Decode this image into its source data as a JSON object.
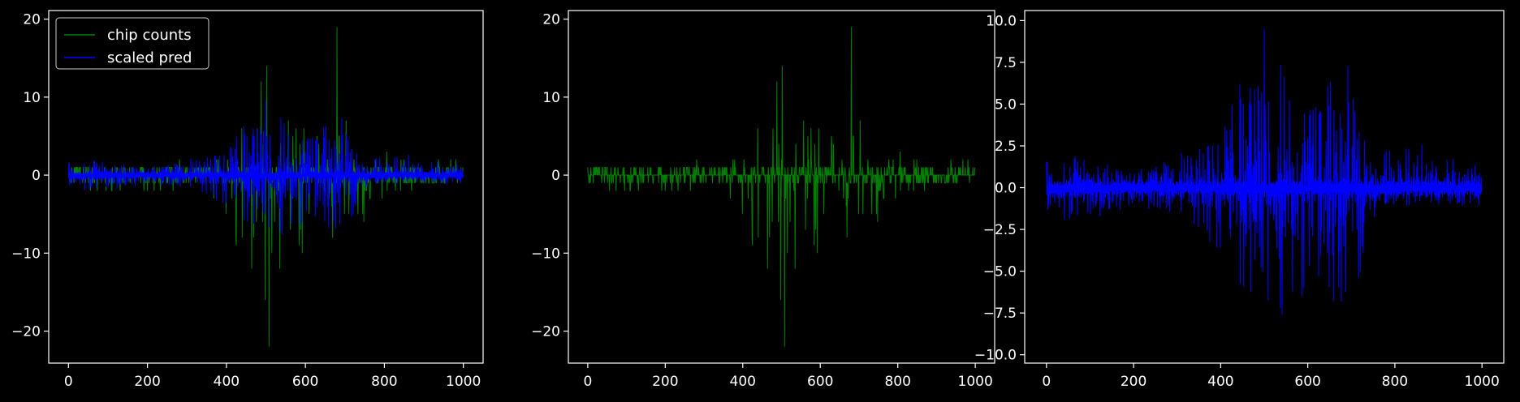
{
  "figure": {
    "background": "#000000",
    "foreground": "#ffffff"
  },
  "chart_data": [
    {
      "type": "line",
      "title": "",
      "xlabel": "",
      "ylabel": "",
      "xlim": [
        -50,
        1050
      ],
      "ylim": [
        -24.1,
        21.1
      ],
      "xticks": [
        0,
        200,
        400,
        600,
        800,
        1000
      ],
      "xtick_labels": [
        "0",
        "200",
        "400",
        "600",
        "800",
        "1000"
      ],
      "yticks": [
        20,
        10,
        0,
        -10,
        -20
      ],
      "ytick_labels": [
        "20",
        "10",
        "0",
        "−10",
        "−20"
      ],
      "grid": false,
      "legend": {
        "placement": "top-left",
        "entries": [
          "chip counts",
          "scaled pred"
        ]
      },
      "series": [
        {
          "name": "chip counts",
          "color": "#008000",
          "n": 1000,
          "shape": "signed integer counts; mostly ±1 noise near zero, larger bursts around x≈380–740",
          "envelope_x": [
            0,
            100,
            200,
            300,
            380,
            450,
            500,
            550,
            600,
            650,
            680,
            700,
            740,
            800,
            900,
            1000
          ],
          "envelope_max": [
            1,
            1,
            1,
            2,
            5,
            7,
            14,
            7,
            7,
            8,
            19,
            8,
            4,
            3,
            3,
            3
          ],
          "envelope_min": [
            -1,
            -3,
            -2,
            -3,
            -6,
            -10,
            -22,
            -10,
            -12,
            -8,
            -10,
            -9,
            -6,
            -3,
            -1,
            -1
          ],
          "peaks": [
            {
              "x": 502,
              "y": 14
            },
            {
              "x": 508,
              "y": -22
            },
            {
              "x": 680,
              "y": 19
            }
          ]
        },
        {
          "name": "scaled pred",
          "color": "#0000ff",
          "n": 1000,
          "shape": "two mirrored bands (positive and negative) with spikes; amplitude grows around x≈370–720",
          "envelope_x": [
            0,
            100,
            200,
            300,
            370,
            420,
            480,
            500,
            560,
            620,
            680,
            720,
            760,
            800,
            900,
            1000
          ],
          "envelope_max": [
            2,
            1.8,
            1,
            2,
            3,
            5,
            8,
            9.7,
            6,
            5,
            8.5,
            5,
            2,
            3,
            2.5,
            1.2
          ],
          "envelope_min": [
            -2.3,
            -1.8,
            -1,
            -1.5,
            -3,
            -5,
            -8,
            -9.7,
            -7,
            -6,
            -7.5,
            -6,
            -1.2,
            -1,
            -1,
            -1.2
          ]
        }
      ]
    },
    {
      "type": "line",
      "title": "",
      "xlabel": "",
      "ylabel": "",
      "xlim": [
        -50,
        1050
      ],
      "ylim": [
        -24.1,
        21.1
      ],
      "xticks": [
        0,
        200,
        400,
        600,
        800,
        1000
      ],
      "xtick_labels": [
        "0",
        "200",
        "400",
        "600",
        "800",
        "1000"
      ],
      "yticks": [
        20,
        10,
        0,
        -10,
        -20
      ],
      "ytick_labels": [
        "20",
        "10",
        "0",
        "−10",
        "−20"
      ],
      "grid": false,
      "series": [
        {
          "color": "#008000",
          "n": 1000,
          "shape": "same chip counts series",
          "envelope_x": [
            0,
            100,
            200,
            300,
            380,
            450,
            500,
            550,
            600,
            650,
            680,
            700,
            740,
            800,
            900,
            1000
          ],
          "envelope_max": [
            1,
            1,
            1,
            2,
            5,
            7,
            14,
            7,
            7,
            8,
            19,
            8,
            4,
            3,
            3,
            3
          ],
          "envelope_min": [
            -1,
            -3,
            -2,
            -3,
            -6,
            -10,
            -22,
            -10,
            -12,
            -8,
            -10,
            -9,
            -6,
            -3,
            -1,
            -1
          ],
          "peaks": [
            {
              "x": 502,
              "y": 14
            },
            {
              "x": 508,
              "y": -22
            },
            {
              "x": 680,
              "y": 19
            }
          ]
        }
      ]
    },
    {
      "type": "line",
      "title": "",
      "xlabel": "",
      "ylabel": "",
      "xlim": [
        -50,
        1050
      ],
      "ylim": [
        -10.5,
        10.6
      ],
      "xticks": [
        0,
        200,
        400,
        600,
        800,
        1000
      ],
      "xtick_labels": [
        "0",
        "200",
        "400",
        "600",
        "800",
        "1000"
      ],
      "yticks": [
        10,
        7.5,
        5,
        2.5,
        0,
        -2.5,
        -5,
        -7.5,
        -10
      ],
      "ytick_labels": [
        "10.0",
        "7.5",
        "5.0",
        "2.5",
        "0.0",
        "−2.5",
        "−5.0",
        "−7.5",
        "−10.0"
      ],
      "grid": false,
      "series": [
        {
          "color": "#0000ff",
          "n": 1000,
          "shape": "same scaled pred series",
          "envelope_x": [
            0,
            100,
            200,
            300,
            370,
            420,
            480,
            500,
            560,
            620,
            680,
            720,
            760,
            800,
            900,
            1000
          ],
          "envelope_max": [
            2,
            1.8,
            1,
            2,
            3,
            5,
            8,
            9.7,
            6,
            5,
            8.5,
            5,
            2,
            3,
            2.5,
            1.2
          ],
          "envelope_min": [
            -2.3,
            -1.8,
            -1,
            -1.5,
            -3,
            -5,
            -8,
            -9.7,
            -7,
            -6,
            -7.5,
            -6,
            -1.2,
            -1,
            -1,
            -1.2
          ]
        }
      ]
    }
  ]
}
